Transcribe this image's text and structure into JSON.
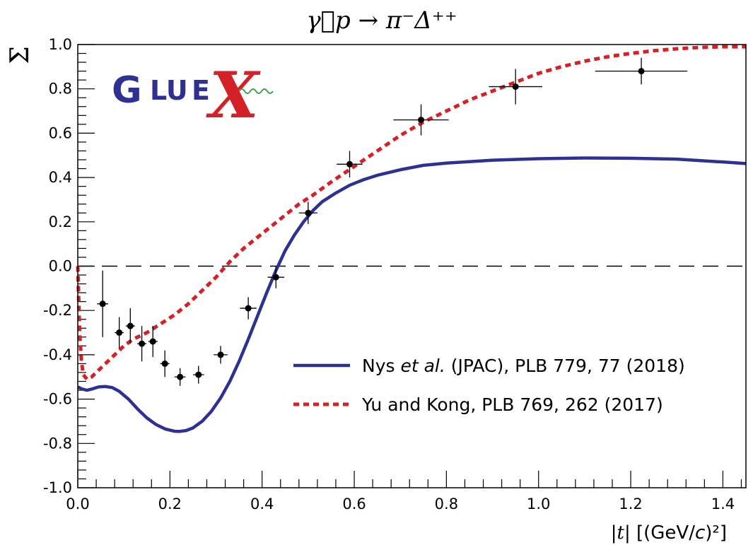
{
  "chart_data": {
    "type": "scatter",
    "title": "γ⃗p → π⁻Δ⁺⁺",
    "ylabel": "Σ",
    "xlabel": {
      "open": "|",
      "var": "t",
      "mid": "| [(GeV/",
      "c": "c",
      "close": ")²]"
    },
    "xlim": [
      0.0,
      1.45
    ],
    "ylim": [
      -1.0,
      1.0
    ],
    "x_ticks": [
      0.0,
      0.2,
      0.4,
      0.6,
      0.8,
      1.0,
      1.2,
      1.4
    ],
    "x_tick_labels": [
      "0.0",
      "0.2",
      "0.4",
      "0.6",
      "0.8",
      "1.0",
      "1.2",
      "1.4"
    ],
    "y_ticks": [
      -1.0,
      -0.8,
      -0.6,
      -0.4,
      -0.2,
      0.0,
      0.2,
      0.4,
      0.6,
      0.8,
      1.0
    ],
    "y_tick_labels": [
      "-1.0",
      "-0.8",
      "-0.6",
      "-0.4",
      "-0.2",
      "0.0",
      "0.2",
      "0.4",
      "0.6",
      "0.8",
      "1.0"
    ],
    "reference_line": {
      "y": 0.0,
      "style": "dashed"
    },
    "data": [
      {
        "x": 0.054,
        "y": -0.17,
        "xerr": 0.012,
        "yerr": 0.15
      },
      {
        "x": 0.09,
        "y": -0.3,
        "xerr": 0.01,
        "yerr": 0.07
      },
      {
        "x": 0.114,
        "y": -0.27,
        "xerr": 0.01,
        "yerr": 0.08
      },
      {
        "x": 0.139,
        "y": -0.35,
        "xerr": 0.01,
        "yerr": 0.08
      },
      {
        "x": 0.163,
        "y": -0.34,
        "xerr": 0.01,
        "yerr": 0.07
      },
      {
        "x": 0.189,
        "y": -0.44,
        "xerr": 0.01,
        "yerr": 0.06
      },
      {
        "x": 0.222,
        "y": -0.5,
        "xerr": 0.012,
        "yerr": 0.04
      },
      {
        "x": 0.262,
        "y": -0.49,
        "xerr": 0.012,
        "yerr": 0.04
      },
      {
        "x": 0.31,
        "y": -0.4,
        "xerr": 0.015,
        "yerr": 0.04
      },
      {
        "x": 0.37,
        "y": -0.19,
        "xerr": 0.018,
        "yerr": 0.05
      },
      {
        "x": 0.43,
        "y": -0.05,
        "xerr": 0.018,
        "yerr": 0.05
      },
      {
        "x": 0.5,
        "y": 0.24,
        "xerr": 0.02,
        "yerr": 0.05
      },
      {
        "x": 0.59,
        "y": 0.46,
        "xerr": 0.028,
        "yerr": 0.06
      },
      {
        "x": 0.745,
        "y": 0.66,
        "xerr": 0.06,
        "yerr": 0.07
      },
      {
        "x": 0.95,
        "y": 0.81,
        "xerr": 0.058,
        "yerr": 0.08
      },
      {
        "x": 1.223,
        "y": 0.88,
        "xerr": 0.1,
        "yerr": 0.06
      }
    ],
    "series": [
      {
        "name": "Nys et al. (JPAC), PLB 779, 77 (2018)",
        "style": "solid",
        "color": "#2e3192",
        "x": [
          0.0,
          0.01,
          0.02,
          0.03,
          0.045,
          0.06,
          0.075,
          0.09,
          0.11,
          0.13,
          0.15,
          0.17,
          0.19,
          0.21,
          0.22,
          0.235,
          0.25,
          0.27,
          0.29,
          0.31,
          0.33,
          0.35,
          0.37,
          0.39,
          0.41,
          0.43,
          0.45,
          0.47,
          0.49,
          0.51,
          0.53,
          0.56,
          0.59,
          0.62,
          0.65,
          0.7,
          0.75,
          0.8,
          0.9,
          1.0,
          1.1,
          1.2,
          1.3,
          1.4,
          1.45
        ],
        "y": [
          -0.545,
          -0.555,
          -0.56,
          -0.555,
          -0.545,
          -0.543,
          -0.548,
          -0.565,
          -0.6,
          -0.645,
          -0.685,
          -0.715,
          -0.735,
          -0.745,
          -0.746,
          -0.742,
          -0.73,
          -0.7,
          -0.655,
          -0.595,
          -0.52,
          -0.43,
          -0.33,
          -0.225,
          -0.12,
          -0.02,
          0.07,
          0.14,
          0.2,
          0.25,
          0.29,
          0.33,
          0.365,
          0.39,
          0.41,
          0.435,
          0.455,
          0.465,
          0.478,
          0.485,
          0.488,
          0.487,
          0.483,
          0.47,
          0.463
        ]
      },
      {
        "name": "Yu and Kong, PLB 769, 262 (2017)",
        "style": "dashed",
        "color": "#d42027",
        "x": [
          0.0,
          0.004,
          0.008,
          0.012,
          0.02,
          0.03,
          0.04,
          0.06,
          0.08,
          0.1,
          0.12,
          0.15,
          0.18,
          0.21,
          0.24,
          0.27,
          0.3,
          0.33,
          0.36,
          0.39,
          0.42,
          0.45,
          0.48,
          0.51,
          0.55,
          0.6,
          0.65,
          0.7,
          0.75,
          0.8,
          0.85,
          0.9,
          0.95,
          1.0,
          1.05,
          1.1,
          1.15,
          1.2,
          1.25,
          1.3,
          1.35,
          1.4,
          1.45
        ],
        "y": [
          0.0,
          -0.3,
          -0.43,
          -0.49,
          -0.51,
          -0.5,
          -0.48,
          -0.44,
          -0.4,
          -0.36,
          -0.33,
          -0.3,
          -0.26,
          -0.22,
          -0.17,
          -0.11,
          -0.05,
          0.02,
          0.08,
          0.13,
          0.18,
          0.23,
          0.28,
          0.32,
          0.38,
          0.45,
          0.52,
          0.59,
          0.65,
          0.7,
          0.75,
          0.79,
          0.83,
          0.87,
          0.9,
          0.925,
          0.945,
          0.96,
          0.972,
          0.981,
          0.987,
          0.99,
          0.99
        ]
      }
    ],
    "legend": {
      "placement": "bottom-right"
    }
  },
  "legend": {
    "entries": [
      {
        "pre": "Nys ",
        "em": "et al.",
        "post": " (JPAC), PLB 779, 77 (2018)"
      },
      {
        "pre": "Yu and Kong, PLB 769, 262 (2017)",
        "em": "",
        "post": ""
      }
    ]
  },
  "logo": {
    "text": "GLUEX",
    "g": "G",
    "lu": "LU",
    "e": "E",
    "x": "X"
  }
}
